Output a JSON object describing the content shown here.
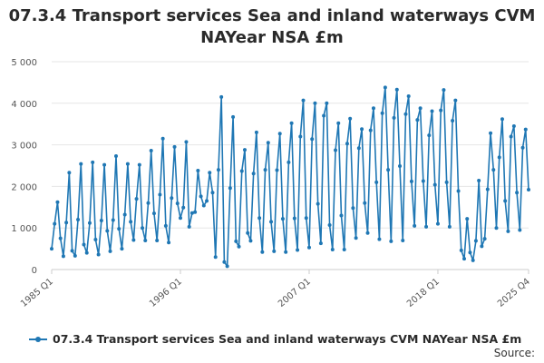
{
  "title_line1": "07.3.4 Transport services Sea and inland waterways CVM",
  "title_line2": "NAYear NSA £m",
  "legend_label": "07.3.4 Transport services Sea and inland waterways CVM NAYear NSA £m",
  "source_label": "Source:",
  "colors": {
    "series": "#1f77b4",
    "grid": "#e6e6e6",
    "axis": "#cccccc"
  },
  "chart_data": {
    "type": "line",
    "title": "07.3.4 Transport services Sea and inland waterways CVM NAYear NSA £m",
    "xlabel": "",
    "ylabel": "",
    "ylim": [
      0,
      5000
    ],
    "yticks": [
      0,
      1000,
      2000,
      3000,
      4000,
      5000
    ],
    "ytick_labels": [
      "0",
      "1 000",
      "2 000",
      "3 000",
      "4 000",
      "5 000"
    ],
    "xtick_labels": [
      "1985 Q1",
      "1996 Q1",
      "2007 Q1",
      "2018 Q1",
      "2025 Q4"
    ],
    "xtick_index": [
      0,
      44,
      88,
      132,
      163
    ],
    "grid": true,
    "legend": "bottom",
    "series": [
      {
        "name": "07.3.4 Transport services Sea and inland waterways CVM NAYear NSA £m",
        "x_start": "1985 Q1",
        "frequency": "quarterly",
        "values": [
          500,
          1100,
          1620,
          750,
          320,
          1130,
          2330,
          450,
          330,
          1200,
          2540,
          600,
          400,
          1120,
          2580,
          720,
          360,
          1180,
          2520,
          930,
          440,
          1190,
          2730,
          980,
          500,
          1320,
          2540,
          1150,
          710,
          1700,
          2520,
          1000,
          700,
          1600,
          2860,
          1350,
          700,
          1800,
          3150,
          1050,
          650,
          1720,
          2950,
          1590,
          1240,
          1490,
          3070,
          1030,
          1360,
          1380,
          2380,
          1760,
          1540,
          1650,
          2330,
          1850,
          300,
          2400,
          4150,
          180,
          80,
          1960,
          3670,
          680,
          550,
          2370,
          2880,
          880,
          690,
          2310,
          3300,
          1240,
          420,
          2400,
          3050,
          1150,
          440,
          2390,
          3270,
          1220,
          420,
          2580,
          3520,
          1230,
          470,
          3200,
          4070,
          1240,
          530,
          3140,
          4000,
          1580,
          630,
          3700,
          4000,
          1070,
          480,
          2870,
          3520,
          1300,
          480,
          3030,
          3630,
          1480,
          760,
          2920,
          3380,
          1600,
          880,
          3350,
          3880,
          2100,
          730,
          3760,
          4380,
          2400,
          680,
          3650,
          4330,
          2490,
          700,
          3740,
          4170,
          2120,
          1050,
          3600,
          3880,
          2130,
          1030,
          3230,
          3810,
          2040,
          1100,
          3830,
          4320,
          2100,
          1030,
          3580,
          4070,
          1890,
          460,
          260,
          1220,
          410,
          220,
          690,
          2140,
          560,
          740,
          1930,
          3280,
          2400,
          1000,
          2700,
          3620,
          1650,
          920,
          3200,
          3450,
          1850,
          950,
          2930,
          3370,
          1920
        ]
      }
    ]
  }
}
